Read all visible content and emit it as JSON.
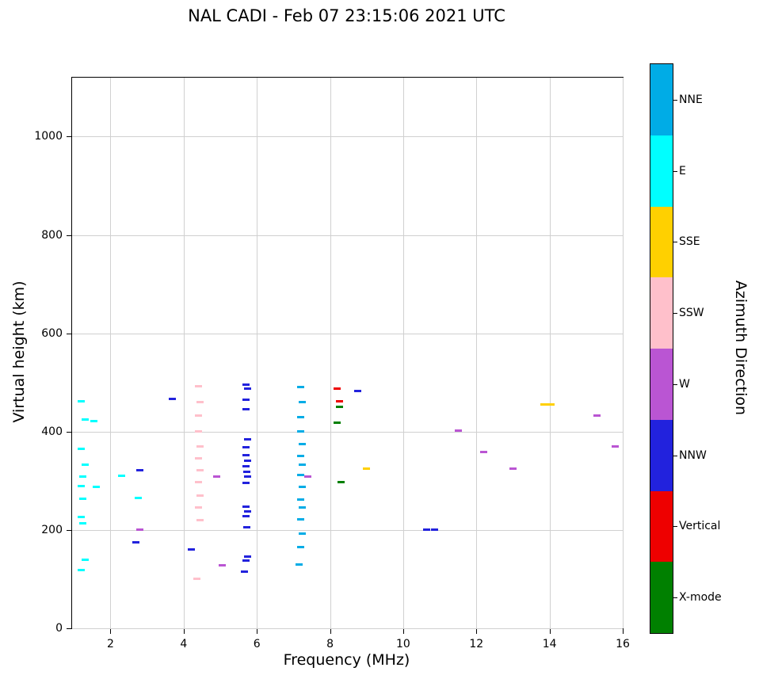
{
  "colorbar": {
    "label": "Azimuth Direction",
    "entries": [
      {
        "label": "NNE",
        "color": "#00ACE6"
      },
      {
        "label": "E",
        "color": "#00FFFF"
      },
      {
        "label": "SSE",
        "color": "#FFD000"
      },
      {
        "label": "SSW",
        "color": "#FFC0CB"
      },
      {
        "label": "W",
        "color": "#BA55D3"
      },
      {
        "label": "NNW",
        "color": "#2222DD"
      },
      {
        "label": "Vertical",
        "color": "#EE0000"
      },
      {
        "label": "X-mode",
        "color": "#008000"
      }
    ]
  },
  "chart_data": {
    "type": "scatter",
    "marker": "horizontal-dash",
    "title": "NAL CADI - Feb 07 23:15:06 2021 UTC",
    "xlabel": "Frequency (MHz)",
    "ylabel": "Virtual height (km)",
    "xlim": [
      0.95,
      16
    ],
    "ylim": [
      0,
      1120
    ],
    "x_ticks": [
      2,
      4,
      6,
      8,
      10,
      12,
      14,
      16
    ],
    "y_ticks": [
      0,
      200,
      400,
      600,
      800,
      1000
    ],
    "grid": true,
    "legend_position": "right-colorbar",
    "series": [
      {
        "name": "NNE",
        "color": "#00ACE6",
        "points": [
          [
            7.2,
            490
          ],
          [
            7.25,
            460
          ],
          [
            7.2,
            430
          ],
          [
            7.2,
            400
          ],
          [
            7.25,
            375
          ],
          [
            7.2,
            350
          ],
          [
            7.25,
            332
          ],
          [
            7.2,
            312
          ],
          [
            7.25,
            288
          ],
          [
            7.2,
            262
          ],
          [
            7.25,
            246
          ],
          [
            7.2,
            222
          ],
          [
            7.25,
            192
          ],
          [
            7.2,
            165
          ],
          [
            7.15,
            130
          ]
        ]
      },
      {
        "name": "E",
        "color": "#00FFFF",
        "points": [
          [
            1.2,
            462
          ],
          [
            1.3,
            425
          ],
          [
            1.55,
            422
          ],
          [
            1.2,
            365
          ],
          [
            1.3,
            332
          ],
          [
            1.25,
            308
          ],
          [
            2.3,
            310
          ],
          [
            1.2,
            290
          ],
          [
            1.6,
            288
          ],
          [
            1.25,
            264
          ],
          [
            2.75,
            265
          ],
          [
            1.2,
            226
          ],
          [
            1.25,
            214
          ],
          [
            1.3,
            140
          ],
          [
            1.2,
            118
          ]
        ]
      },
      {
        "name": "SSE",
        "color": "#FFD000",
        "points": [
          [
            9.0,
            325
          ],
          [
            13.85,
            455
          ],
          [
            14.05,
            455
          ]
        ]
      },
      {
        "name": "SSW",
        "color": "#FFC0CB",
        "points": [
          [
            4.4,
            493
          ],
          [
            4.45,
            460
          ],
          [
            4.4,
            432
          ],
          [
            4.4,
            400
          ],
          [
            4.45,
            370
          ],
          [
            4.4,
            345
          ],
          [
            4.45,
            322
          ],
          [
            4.4,
            298
          ],
          [
            4.45,
            270
          ],
          [
            4.4,
            245
          ],
          [
            4.45,
            220
          ],
          [
            4.35,
            100
          ]
        ]
      },
      {
        "name": "W",
        "color": "#BA55D3",
        "points": [
          [
            2.8,
            200
          ],
          [
            4.9,
            308
          ],
          [
            5.05,
            128
          ],
          [
            7.4,
            308
          ],
          [
            11.5,
            402
          ],
          [
            12.2,
            358
          ],
          [
            13.0,
            325
          ],
          [
            15.3,
            432
          ],
          [
            15.8,
            370
          ]
        ]
      },
      {
        "name": "NNW",
        "color": "#2222DD",
        "points": [
          [
            5.7,
            495
          ],
          [
            5.75,
            487
          ],
          [
            5.7,
            465
          ],
          [
            5.7,
            446
          ],
          [
            5.75,
            385
          ],
          [
            5.7,
            368
          ],
          [
            5.7,
            352
          ],
          [
            5.75,
            341
          ],
          [
            5.7,
            330
          ],
          [
            5.72,
            319
          ],
          [
            5.75,
            308
          ],
          [
            5.7,
            295
          ],
          [
            5.7,
            248
          ],
          [
            5.75,
            238
          ],
          [
            5.7,
            228
          ],
          [
            5.72,
            206
          ],
          [
            5.75,
            146
          ],
          [
            5.7,
            138
          ],
          [
            5.65,
            116
          ],
          [
            2.8,
            322
          ],
          [
            2.7,
            175
          ],
          [
            3.7,
            467
          ],
          [
            4.2,
            160
          ],
          [
            8.75,
            483
          ],
          [
            10.65,
            201
          ],
          [
            10.85,
            201
          ]
        ]
      },
      {
        "name": "Vertical",
        "color": "#EE0000",
        "points": [
          [
            8.2,
            487
          ],
          [
            8.25,
            462
          ]
        ]
      },
      {
        "name": "X-mode",
        "color": "#008000",
        "points": [
          [
            8.25,
            450
          ],
          [
            8.2,
            418
          ],
          [
            8.3,
            298
          ]
        ]
      }
    ]
  }
}
